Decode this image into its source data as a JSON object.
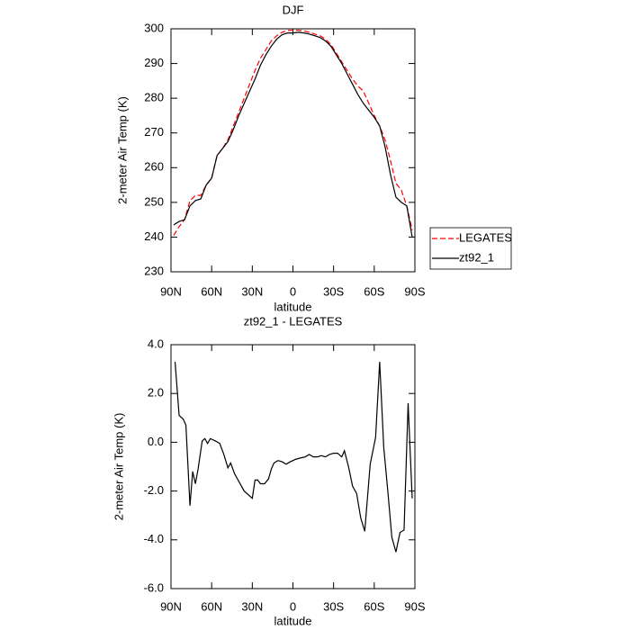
{
  "chart_data": [
    {
      "type": "line",
      "title": "DJF",
      "xlabel": "latitude",
      "ylabel": "2-meter Air Temp (K)",
      "x": [
        88,
        84,
        80,
        76,
        72,
        68,
        64,
        60,
        56,
        52,
        48,
        44,
        40,
        36,
        32,
        28,
        24,
        20,
        16,
        12,
        8,
        4,
        0,
        -4,
        -8,
        -12,
        -16,
        -20,
        -24,
        -28,
        -32,
        -36,
        -40,
        -44,
        -48,
        -52,
        -56,
        -60,
        -64,
        -68,
        -72,
        -76,
        -80,
        -84,
        -88
      ],
      "series": [
        {
          "name": "LEGATES",
          "color": "#ff0000",
          "linestyle": "dashed",
          "values": [
            240.5,
            243,
            245,
            250.5,
            252,
            252,
            255,
            257,
            263.5,
            265.5,
            268,
            272,
            276,
            280,
            284,
            288,
            291.5,
            294,
            296.5,
            298,
            299,
            299.5,
            299.6,
            299.6,
            299.4,
            299,
            298.5,
            298,
            297,
            295.5,
            293,
            290.5,
            288,
            285.5,
            283.5,
            282,
            278.5,
            275,
            272,
            268,
            262,
            255.5,
            253.5,
            249,
            242
          ]
        },
        {
          "name": "zt92_1",
          "color": "#000000",
          "linestyle": "solid",
          "values": [
            243.5,
            244.5,
            245,
            249,
            250.5,
            251,
            255,
            257,
            263.5,
            265.5,
            267.5,
            271,
            275,
            278.5,
            282,
            285.5,
            289.5,
            292.5,
            295,
            297,
            298.3,
            298.8,
            298.8,
            299,
            298.8,
            298.5,
            298,
            297.5,
            296.5,
            295,
            292.5,
            290,
            287,
            284,
            281,
            278.5,
            276.5,
            274.5,
            272,
            266,
            258,
            251.5,
            250,
            249,
            240
          ]
        }
      ],
      "xlim": [
        90,
        -90
      ],
      "xticks": [
        {
          "value": 90,
          "label": "90N"
        },
        {
          "value": 60,
          "label": "60N"
        },
        {
          "value": 30,
          "label": "30N"
        },
        0,
        {
          "value": -30,
          "label": "30S"
        },
        {
          "value": -60,
          "label": "60S"
        },
        {
          "value": -90,
          "label": "90S"
        }
      ],
      "ylim": [
        230,
        300
      ],
      "yticks": [
        230,
        240,
        250,
        260,
        270,
        280,
        290,
        300
      ],
      "legend": "right"
    },
    {
      "type": "line",
      "title": "zt92_1 - LEGATES",
      "xlabel": "latitude",
      "ylabel": "2-meter Air Temp (K)",
      "x": [
        87,
        84,
        81,
        79,
        76,
        74,
        72,
        70,
        67,
        65,
        63,
        61,
        57,
        54,
        51,
        48,
        46,
        43,
        36,
        30,
        28,
        26,
        24,
        21,
        18,
        16,
        14,
        11,
        8,
        5,
        2,
        -2,
        -5,
        -9,
        -12,
        -15,
        -18,
        -21,
        -24,
        -27,
        -30,
        -33,
        -36,
        -38,
        -41,
        -44,
        -47,
        -50,
        -53,
        -57,
        -61,
        -64,
        -67,
        -70,
        -73,
        -76,
        -79,
        -82,
        -85,
        -88
      ],
      "values": [
        3.3,
        1.1,
        0.95,
        0.7,
        -2.6,
        -1.2,
        -1.7,
        -1.1,
        0.05,
        0.15,
        -0.05,
        0.15,
        0.05,
        -0.05,
        -0.5,
        -1.05,
        -0.85,
        -1.3,
        -2.0,
        -2.3,
        -1.55,
        -1.55,
        -1.7,
        -1.7,
        -1.5,
        -1.1,
        -0.85,
        -0.75,
        -0.8,
        -0.9,
        -0.8,
        -0.7,
        -0.65,
        -0.6,
        -0.5,
        -0.6,
        -0.6,
        -0.55,
        -0.6,
        -0.5,
        -0.45,
        -0.45,
        -0.6,
        -0.35,
        -1.0,
        -1.8,
        -2.1,
        -3.1,
        -3.65,
        -0.9,
        0.2,
        3.3,
        -0.2,
        -2.0,
        -3.9,
        -4.5,
        -3.7,
        -3.6,
        1.6,
        -2.3
      ],
      "color": "#000000",
      "xlim": [
        90,
        -90
      ],
      "xticks": [
        {
          "value": 90,
          "label": "90N"
        },
        {
          "value": 60,
          "label": "60N"
        },
        {
          "value": 30,
          "label": "30N"
        },
        0,
        {
          "value": -30,
          "label": "30S"
        },
        {
          "value": -60,
          "label": "60S"
        },
        {
          "value": -90,
          "label": "90S"
        }
      ],
      "ylim": [
        -6,
        4
      ],
      "yticks": [
        {
          "value": -6,
          "label": "-6.0"
        },
        {
          "value": -4,
          "label": "-4.0"
        },
        {
          "value": -2,
          "label": "-2.0"
        },
        {
          "value": 0,
          "label": "0.0"
        },
        {
          "value": 2,
          "label": "2.0"
        },
        {
          "value": 4,
          "label": "4.0"
        }
      ]
    }
  ]
}
